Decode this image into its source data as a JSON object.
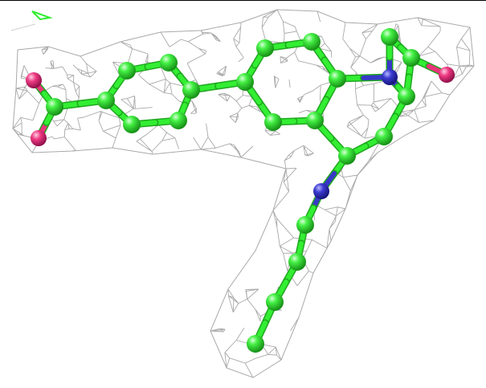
{
  "scene": {
    "description_type": "ligand-electron-density",
    "colors": {
      "background": "#ffffff",
      "mesh": "#a9a9a9",
      "carbon": "#33ee33",
      "carbon_dark": "#1fa81f",
      "nitrogen": "#3838c8",
      "oxygen": "#e8357a",
      "frame": "#000000"
    }
  }
}
